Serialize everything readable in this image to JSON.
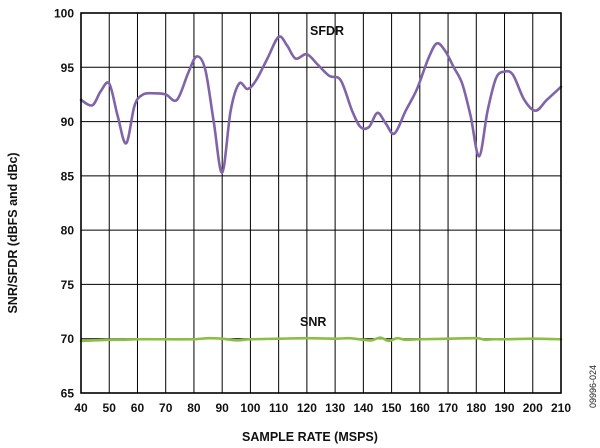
{
  "chart_data": {
    "type": "line",
    "xlabel": "SAMPLE RATE (MSPS)",
    "ylabel": "SNR/SFDR (dBFS and dBc)",
    "xlim": [
      40,
      210
    ],
    "ylim": [
      65,
      100
    ],
    "x_ticks": [
      40,
      50,
      60,
      70,
      80,
      90,
      100,
      110,
      120,
      130,
      140,
      150,
      160,
      170,
      180,
      190,
      200,
      210
    ],
    "y_ticks": [
      65,
      70,
      75,
      80,
      85,
      90,
      95,
      100
    ],
    "grid": true,
    "series": [
      {
        "name": "SFDR",
        "color": "#8064a8",
        "x": [
          40,
          44,
          47,
          50,
          53,
          56,
          59,
          62,
          66,
          70,
          74,
          78,
          81,
          84,
          87,
          90,
          93,
          96,
          99,
          102,
          106,
          110,
          113,
          116,
          120,
          124,
          128,
          132,
          136,
          139,
          142,
          145,
          148,
          151,
          155,
          159,
          163,
          166,
          169,
          172,
          175,
          178,
          181,
          184,
          187,
          190,
          193,
          197,
          201,
          205,
          210
        ],
        "y": [
          92.0,
          91.5,
          92.8,
          93.5,
          90.5,
          88.0,
          91.5,
          92.5,
          92.6,
          92.5,
          92.0,
          94.5,
          96.0,
          94.8,
          90.0,
          85.3,
          91.0,
          93.5,
          93.0,
          93.8,
          95.8,
          97.8,
          97.0,
          95.8,
          96.2,
          95.2,
          94.2,
          93.8,
          91.0,
          89.5,
          89.5,
          90.8,
          89.8,
          88.9,
          91.0,
          93.0,
          95.8,
          97.2,
          96.5,
          95.0,
          93.5,
          90.5,
          86.8,
          91.0,
          94.0,
          94.6,
          94.3,
          92.0,
          91.0,
          92.0,
          93.2
        ]
      },
      {
        "name": "SNR",
        "color": "#8cbe46",
        "x": [
          40,
          45,
          50,
          55,
          60,
          70,
          80,
          85,
          90,
          95,
          100,
          110,
          120,
          130,
          135,
          140,
          143,
          146,
          149,
          152,
          155,
          160,
          170,
          180,
          183,
          186,
          190,
          200,
          210
        ],
        "y": [
          69.8,
          69.85,
          69.9,
          69.9,
          69.95,
          69.95,
          69.95,
          70.05,
          70.0,
          69.85,
          69.95,
          70.0,
          70.05,
          70.0,
          70.05,
          69.9,
          69.85,
          70.1,
          69.8,
          70.05,
          69.9,
          69.95,
          70.0,
          70.05,
          69.9,
          69.95,
          69.95,
          70.0,
          69.95
        ]
      }
    ]
  },
  "figure_id": "09996-024"
}
